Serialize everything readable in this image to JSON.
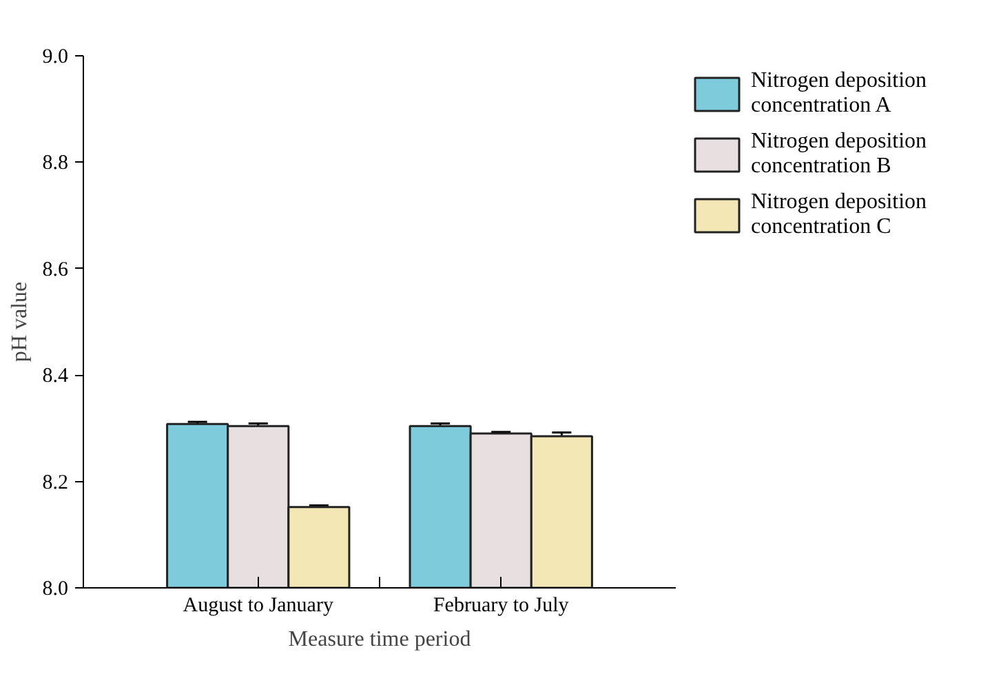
{
  "chart_data": {
    "type": "bar",
    "xlabel": "Measure time period",
    "ylabel": "pH value",
    "categories": [
      "August to January",
      "February to July"
    ],
    "series": [
      {
        "name": "Nitrogen deposition concentration A",
        "color": "#7ecbdc",
        "values": [
          8.308,
          8.304
        ],
        "errors": [
          0.004,
          0.005
        ]
      },
      {
        "name": "Nitrogen deposition concentration B",
        "color": "#e8dfe0",
        "values": [
          8.304,
          8.29
        ],
        "errors": [
          0.005,
          0.003
        ]
      },
      {
        "name": "Nitrogen deposition concentration C",
        "color": "#f3e8b5",
        "values": [
          8.152,
          8.285
        ],
        "errors": [
          0.003,
          0.007
        ]
      }
    ],
    "ylim": [
      8.0,
      9.0
    ],
    "yticks": [
      "8.0",
      8.2,
      8.4,
      8.6,
      8.8,
      "9.0"
    ],
    "legend": "top right"
  }
}
